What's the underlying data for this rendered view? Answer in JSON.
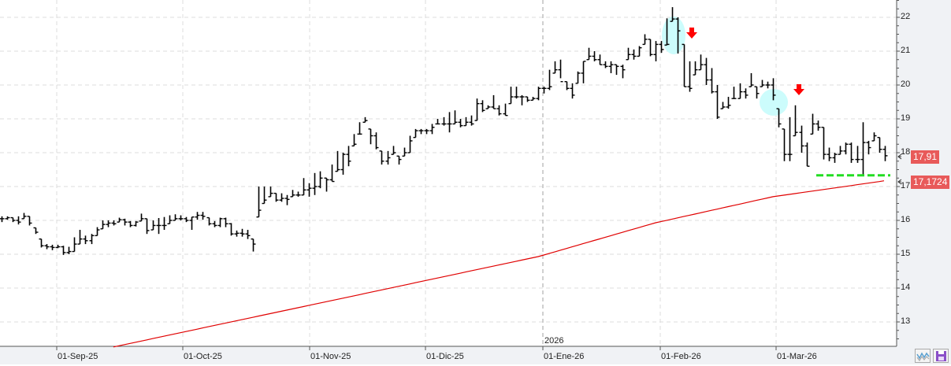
{
  "chart_data": {
    "type": "ohlc",
    "title": "",
    "ylim": [
      12.4,
      22.5
    ],
    "y_ticks": [
      "13",
      "14",
      "15",
      "16",
      "17",
      "18",
      "19",
      "20",
      "21",
      "22"
    ],
    "y_tick_values": [
      13,
      14,
      15,
      16,
      17,
      18,
      19,
      20,
      21,
      22
    ],
    "x_tick_labels": [
      "01-Sep-25",
      "01-Oct-25",
      "01-Nov-25",
      "01-Dic-25",
      "01-Ene-26",
      "01-Feb-26",
      "01-Mar-26"
    ],
    "year_marker": "2026",
    "grid": true,
    "bars_hlc": [
      [
        16.12,
        15.95,
        16.05
      ],
      [
        16.12,
        16.02,
        16.08
      ],
      [
        16.08,
        15.95,
        16.0
      ],
      [
        16.12,
        15.88,
        15.95
      ],
      [
        16.22,
        16.05,
        16.12
      ],
      [
        16.12,
        15.85,
        15.92
      ],
      [
        15.78,
        15.6,
        15.65
      ],
      [
        15.45,
        15.2,
        15.25
      ],
      [
        15.3,
        15.15,
        15.22
      ],
      [
        15.28,
        15.12,
        15.2
      ],
      [
        15.28,
        15.18,
        15.22
      ],
      [
        15.25,
        14.98,
        15.05
      ],
      [
        15.22,
        15.0,
        15.08
      ],
      [
        15.5,
        15.08,
        15.3
      ],
      [
        15.72,
        15.3,
        15.45
      ],
      [
        15.55,
        15.3,
        15.4
      ],
      [
        15.6,
        15.3,
        15.55
      ],
      [
        15.8,
        15.55,
        15.72
      ],
      [
        16.0,
        15.75,
        15.88
      ],
      [
        16.0,
        15.8,
        15.92
      ],
      [
        16.0,
        15.85,
        15.9
      ],
      [
        16.08,
        15.95,
        16.02
      ],
      [
        16.05,
        15.85,
        15.95
      ],
      [
        15.98,
        15.8,
        15.85
      ],
      [
        15.98,
        15.82,
        15.95
      ],
      [
        16.2,
        15.98,
        16.05
      ],
      [
        16.05,
        15.6,
        15.7
      ],
      [
        16.0,
        15.72,
        15.85
      ],
      [
        16.07,
        15.6,
        15.85
      ],
      [
        16.1,
        15.72,
        15.85
      ],
      [
        16.15,
        15.9,
        16.0
      ],
      [
        16.18,
        16.0,
        16.05
      ],
      [
        16.15,
        16.0,
        16.05
      ],
      [
        16.1,
        15.95,
        16.0
      ],
      [
        16.1,
        15.72,
        16.1
      ],
      [
        16.25,
        16.02,
        16.15
      ],
      [
        16.25,
        16.02,
        16.12
      ],
      [
        16.08,
        15.85,
        15.9
      ],
      [
        15.98,
        15.8,
        15.85
      ],
      [
        16.08,
        15.8,
        16.05
      ],
      [
        16.08,
        15.8,
        15.9
      ],
      [
        15.92,
        15.55,
        15.6
      ],
      [
        15.7,
        15.52,
        15.62
      ],
      [
        15.75,
        15.52,
        15.6
      ],
      [
        15.72,
        15.45,
        15.55
      ],
      [
        15.45,
        15.08,
        15.3
      ],
      [
        17.0,
        16.1,
        16.3
      ],
      [
        17.0,
        16.5,
        16.6
      ],
      [
        17.0,
        16.7,
        16.8
      ],
      [
        16.8,
        16.55,
        16.6
      ],
      [
        16.8,
        16.55,
        16.65
      ],
      [
        16.75,
        16.45,
        16.62
      ],
      [
        16.9,
        16.7,
        16.75
      ],
      [
        16.85,
        16.7,
        16.75
      ],
      [
        17.25,
        16.75,
        16.9
      ],
      [
        17.1,
        16.7,
        16.95
      ],
      [
        17.4,
        16.75,
        17.0
      ],
      [
        17.45,
        16.95,
        17.25
      ],
      [
        17.25,
        16.85,
        17.2
      ],
      [
        17.65,
        17.15,
        17.15
      ],
      [
        18.05,
        17.45,
        17.5
      ],
      [
        18.0,
        17.35,
        17.95
      ],
      [
        18.2,
        17.6,
        17.75
      ],
      [
        18.55,
        18.2,
        18.25
      ],
      [
        18.9,
        18.55,
        18.55
      ],
      [
        19.05,
        18.9,
        18.95
      ],
      [
        18.7,
        18.25,
        18.5
      ],
      [
        18.6,
        18.1,
        18.15
      ],
      [
        18.05,
        17.65,
        17.75
      ],
      [
        18.05,
        17.65,
        17.85
      ],
      [
        18.2,
        17.95,
        18.0
      ],
      [
        17.9,
        17.65,
        17.8
      ],
      [
        18.15,
        17.9,
        18.0
      ],
      [
        18.5,
        18.0,
        18.35
      ],
      [
        18.7,
        18.45,
        18.65
      ],
      [
        18.7,
        18.55,
        18.65
      ],
      [
        18.7,
        18.55,
        18.65
      ],
      [
        18.85,
        18.55,
        18.75
      ],
      [
        19.0,
        18.85,
        18.85
      ],
      [
        19.05,
        18.8,
        18.85
      ],
      [
        19.2,
        18.6,
        18.85
      ],
      [
        19.25,
        18.85,
        18.9
      ],
      [
        19.0,
        18.75,
        18.8
      ],
      [
        19.05,
        18.8,
        18.9
      ],
      [
        19.1,
        18.8,
        18.85
      ],
      [
        19.6,
        18.95,
        19.45
      ],
      [
        19.55,
        19.2,
        19.25
      ],
      [
        19.4,
        19.3,
        19.35
      ],
      [
        19.7,
        19.3,
        19.3
      ],
      [
        19.4,
        19.1,
        19.15
      ],
      [
        19.45,
        19.1,
        19.1
      ],
      [
        19.95,
        19.45,
        19.65
      ],
      [
        19.95,
        19.6,
        19.65
      ],
      [
        19.7,
        19.4,
        19.65
      ],
      [
        19.65,
        19.5,
        19.55
      ],
      [
        19.65,
        19.55,
        19.6
      ],
      [
        19.95,
        19.55,
        19.9
      ],
      [
        19.95,
        19.75,
        19.9
      ],
      [
        20.45,
        19.85,
        19.95
      ],
      [
        20.7,
        20.35,
        20.45
      ],
      [
        20.75,
        20.2,
        20.1
      ],
      [
        20.1,
        19.85,
        19.9
      ],
      [
        20.05,
        19.6,
        19.7
      ],
      [
        20.4,
        20.05,
        20.35
      ],
      [
        20.7,
        20.05,
        20.7
      ],
      [
        21.1,
        20.75,
        20.85
      ],
      [
        21.0,
        20.7,
        20.75
      ],
      [
        20.9,
        20.6,
        20.6
      ],
      [
        20.7,
        20.5,
        20.55
      ],
      [
        20.7,
        20.35,
        20.6
      ],
      [
        20.6,
        20.3,
        20.55
      ],
      [
        20.6,
        20.2,
        20.45
      ],
      [
        21.1,
        20.75,
        20.9
      ],
      [
        21.05,
        20.75,
        20.85
      ],
      [
        21.15,
        20.85,
        21.1
      ],
      [
        21.5,
        21.2,
        21.35
      ],
      [
        21.35,
        20.85,
        20.9
      ],
      [
        21.3,
        20.7,
        21.2
      ],
      [
        21.3,
        20.95,
        21.05
      ],
      [
        21.97,
        21.18,
        21.2
      ],
      [
        22.3,
        21.88,
        21.95
      ],
      [
        22.0,
        20.93,
        21.6
      ],
      [
        21.2,
        19.95,
        19.95
      ],
      [
        20.7,
        19.8,
        19.9
      ],
      [
        20.7,
        20.3,
        20.45
      ],
      [
        20.9,
        20.45,
        20.6
      ],
      [
        20.8,
        20.0,
        20.15
      ],
      [
        20.5,
        19.75,
        19.8
      ],
      [
        20.0,
        19.0,
        19.05
      ],
      [
        19.5,
        19.3,
        19.35
      ],
      [
        19.65,
        19.3,
        19.4
      ],
      [
        19.95,
        19.6,
        19.6
      ],
      [
        20.05,
        19.6,
        19.8
      ],
      [
        19.9,
        19.6,
        19.7
      ],
      [
        20.35,
        19.95,
        20.0
      ],
      [
        19.95,
        19.6,
        19.75
      ],
      [
        20.15,
        19.95,
        20.0
      ],
      [
        20.1,
        19.9,
        20.0
      ],
      [
        20.2,
        19.55,
        19.7
      ],
      [
        19.3,
        18.75,
        18.85
      ],
      [
        18.7,
        17.75,
        17.95
      ],
      [
        19.05,
        17.75,
        17.95
      ],
      [
        19.4,
        18.5,
        18.6
      ],
      [
        18.8,
        18.0,
        18.2
      ],
      [
        18.3,
        17.6,
        17.6
      ],
      [
        19.15,
        18.55,
        18.85
      ],
      [
        18.95,
        18.65,
        18.75
      ],
      [
        18.75,
        17.8,
        17.95
      ],
      [
        18.15,
        17.75,
        17.85
      ],
      [
        18.0,
        17.7,
        17.95
      ],
      [
        18.2,
        17.95,
        18.05
      ],
      [
        18.3,
        17.95,
        18.25
      ],
      [
        18.3,
        17.7,
        17.8
      ],
      [
        18.2,
        17.7,
        17.8
      ],
      [
        18.9,
        17.35,
        18.3
      ],
      [
        18.35,
        17.95,
        18.15
      ],
      [
        18.6,
        18.35,
        18.5
      ],
      [
        18.45,
        18.0,
        18.1
      ],
      [
        18.2,
        17.75,
        17.91
      ]
    ],
    "moving_average_anchors": [
      [
        20,
        12.26
      ],
      [
        96,
        14.93
      ],
      [
        117,
        15.93
      ],
      [
        138,
        16.7
      ],
      [
        158,
        17.17
      ]
    ],
    "moving_average_color": "#e00000",
    "support_level": 17.33,
    "support_color": "#22dd22",
    "last_price_label": "17,91",
    "ma_price_label": "17,1724",
    "label_color": "#e85a5a",
    "annotations": [
      "highlight-circle",
      "down-arrow",
      "highlight-circle",
      "down-arrow"
    ]
  },
  "toolbar": {
    "icons": [
      "chart-type-icon",
      "save-icon"
    ]
  }
}
